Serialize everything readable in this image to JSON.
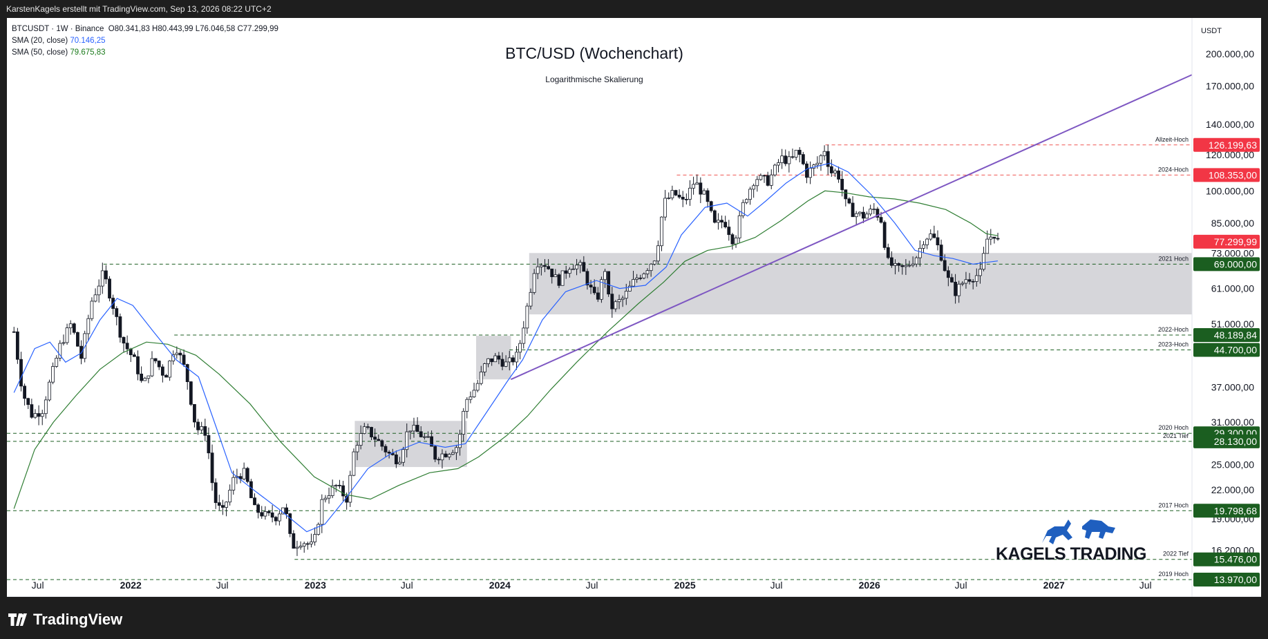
{
  "header": {
    "attribution": "KarstenKagels erstellt mit TradingView.com, Sep 13, 2026 08:22 UTC+2"
  },
  "legend": {
    "symbol": "BTCUSDT · 1W · Binance",
    "ohlc": "O80.341,83  H80.443,99  L76.046,58  C77.299,99",
    "sma20_label": "SMA (20, close)",
    "sma20_value": "70.146,25",
    "sma50_label": "SMA (50, close)",
    "sma50_value": "79.675,83"
  },
  "footer": {
    "brand": "TradingView"
  },
  "watermark": "KAGELS TRADING",
  "colors": {
    "up": "#26a69a",
    "down": "#ef5350",
    "candle": "#131722",
    "sma20": "#2962ff",
    "sma50": "#2e7d32",
    "trendline": "#7e57c2",
    "support": "#1b5e20",
    "resistance": "#ef5350",
    "zone": "#cfcfd3"
  },
  "chart_data": {
    "type": "candlestick",
    "title": "BTC/USD (Wochenchart)",
    "subtitle": "Logarithmische Skalierung",
    "y_scale": "log",
    "currency": "USDT",
    "ylim": [
      12800,
      240000
    ],
    "xlim": [
      "2021-05-01",
      "2027-10-01"
    ],
    "y_ticks": [
      "200.000,00",
      "170.000,00",
      "140.000,00",
      "120.000,00",
      "100.000,00",
      "85.000,00",
      "73.000,00",
      "61.000,00",
      "51.000,00",
      "37.000,00",
      "31.000,00",
      "25.000,00",
      "22.000,00",
      "19.000,00",
      "16.200,00"
    ],
    "y_tick_values": [
      200000,
      170000,
      140000,
      120000,
      100000,
      85000,
      73000,
      61000,
      51000,
      37000,
      31000,
      25000,
      22000,
      19000,
      16200
    ],
    "x_ticks": [
      {
        "label": "Jul",
        "date": "2021-07-01",
        "bold": false
      },
      {
        "label": "2022",
        "date": "2022-01-01",
        "bold": true
      },
      {
        "label": "Jul",
        "date": "2022-07-01",
        "bold": false
      },
      {
        "label": "2023",
        "date": "2023-01-01",
        "bold": true
      },
      {
        "label": "Jul",
        "date": "2023-07-01",
        "bold": false
      },
      {
        "label": "2024",
        "date": "2024-01-01",
        "bold": true
      },
      {
        "label": "Jul",
        "date": "2024-07-01",
        "bold": false
      },
      {
        "label": "2025",
        "date": "2025-01-01",
        "bold": true
      },
      {
        "label": "Jul",
        "date": "2025-07-01",
        "bold": false
      },
      {
        "label": "2026",
        "date": "2026-01-01",
        "bold": true
      },
      {
        "label": "Jul",
        "date": "2026-07-01",
        "bold": false
      },
      {
        "label": "2027",
        "date": "2027-01-01",
        "bold": true
      },
      {
        "label": "Jul",
        "date": "2027-07-01",
        "bold": false
      }
    ],
    "price_series": [
      [
        "2021-05-15",
        49000
      ],
      [
        "2021-06-01",
        36000
      ],
      [
        "2021-06-20",
        32000
      ],
      [
        "2021-07-10",
        33000
      ],
      [
        "2021-07-25",
        38000
      ],
      [
        "2021-08-15",
        46000
      ],
      [
        "2021-09-05",
        51000
      ],
      [
        "2021-09-25",
        43000
      ],
      [
        "2021-10-15",
        57000
      ],
      [
        "2021-11-08",
        66000
      ],
      [
        "2021-11-25",
        57000
      ],
      [
        "2021-12-15",
        47000
      ],
      [
        "2022-01-10",
        42000
      ],
      [
        "2022-01-25",
        37000
      ],
      [
        "2022-02-15",
        43000
      ],
      [
        "2022-03-10",
        39000
      ],
      [
        "2022-03-30",
        46000
      ],
      [
        "2022-04-20",
        40000
      ],
      [
        "2022-05-10",
        30000
      ],
      [
        "2022-05-30",
        29500
      ],
      [
        "2022-06-15",
        21000
      ],
      [
        "2022-07-01",
        19500
      ],
      [
        "2022-07-25",
        23500
      ],
      [
        "2022-08-15",
        24000
      ],
      [
        "2022-09-01",
        20000
      ],
      [
        "2022-09-25",
        19300
      ],
      [
        "2022-10-15",
        19200
      ],
      [
        "2022-11-01",
        20500
      ],
      [
        "2022-11-15",
        16500
      ],
      [
        "2022-12-05",
        17000
      ],
      [
        "2022-12-28",
        16500
      ],
      [
        "2023-01-15",
        21000
      ],
      [
        "2023-02-10",
        22500
      ],
      [
        "2023-03-05",
        21000
      ],
      [
        "2023-03-20",
        27500
      ],
      [
        "2023-04-10",
        30000
      ],
      [
        "2023-05-01",
        28500
      ],
      [
        "2023-05-25",
        26500
      ],
      [
        "2023-06-15",
        25500
      ],
      [
        "2023-07-05",
        30300
      ],
      [
        "2023-07-25",
        29300
      ],
      [
        "2023-08-15",
        28000
      ],
      [
        "2023-08-25",
        26000
      ],
      [
        "2023-09-15",
        26500
      ],
      [
        "2023-10-10",
        27500
      ],
      [
        "2023-10-25",
        34500
      ],
      [
        "2023-11-15",
        37000
      ],
      [
        "2023-12-05",
        42000
      ],
      [
        "2023-12-25",
        43000
      ],
      [
        "2024-01-15",
        41500
      ],
      [
        "2024-02-05",
        43500
      ],
      [
        "2024-02-26",
        57000
      ],
      [
        "2024-03-12",
        70000
      ],
      [
        "2024-04-01",
        69000
      ],
      [
        "2024-04-25",
        63000
      ],
      [
        "2024-05-20",
        69000
      ],
      [
        "2024-06-10",
        68000
      ],
      [
        "2024-06-28",
        61000
      ],
      [
        "2024-07-10",
        57000
      ],
      [
        "2024-07-28",
        68000
      ],
      [
        "2024-08-05",
        55000
      ],
      [
        "2024-09-01",
        58000
      ],
      [
        "2024-09-25",
        64000
      ],
      [
        "2024-10-15",
        67000
      ],
      [
        "2024-11-05",
        72000
      ],
      [
        "2024-11-20",
        94000
      ],
      [
        "2024-12-10",
        99000
      ],
      [
        "2024-12-30",
        94000
      ],
      [
        "2025-01-20",
        105000
      ],
      [
        "2025-02-10",
        97000
      ],
      [
        "2025-03-01",
        84000
      ],
      [
        "2025-03-20",
        86000
      ],
      [
        "2025-04-08",
        77000
      ],
      [
        "2025-04-28",
        95000
      ],
      [
        "2025-05-20",
        107000
      ],
      [
        "2025-06-15",
        105000
      ],
      [
        "2025-07-10",
        118000
      ],
      [
        "2025-07-30",
        116000
      ],
      [
        "2025-08-12",
        123000
      ],
      [
        "2025-08-30",
        109000
      ],
      [
        "2025-09-20",
        115000
      ],
      [
        "2025-10-05",
        124000
      ],
      [
        "2025-10-15",
        110000
      ],
      [
        "2025-10-30",
        110000
      ],
      [
        "2025-11-15",
        94000
      ],
      [
        "2025-11-28",
        90000
      ],
      [
        "2025-12-20",
        88000
      ],
      [
        "2026-01-10",
        91000
      ],
      [
        "2026-01-25",
        86000
      ],
      [
        "2026-02-05",
        70000
      ],
      [
        "2026-02-25",
        67000
      ],
      [
        "2026-03-15",
        68000
      ],
      [
        "2026-04-05",
        72000
      ],
      [
        "2026-04-20",
        79000
      ],
      [
        "2026-05-05",
        80000
      ],
      [
        "2026-05-20",
        74000
      ],
      [
        "2026-06-05",
        64000
      ],
      [
        "2026-06-20",
        60000
      ],
      [
        "2026-07-10",
        64000
      ],
      [
        "2026-07-30",
        65000
      ],
      [
        "2026-08-10",
        66000
      ],
      [
        "2026-08-20",
        78000
      ],
      [
        "2026-09-05",
        80341
      ],
      [
        "2026-09-12",
        77299.99
      ]
    ],
    "sma20_series": [
      [
        "2021-05-15",
        36000
      ],
      [
        "2021-06-25",
        45000
      ],
      [
        "2021-07-25",
        46500
      ],
      [
        "2021-08-25",
        42000
      ],
      [
        "2021-09-25",
        44000
      ],
      [
        "2021-11-01",
        52000
      ],
      [
        "2021-12-05",
        58000
      ],
      [
        "2022-01-05",
        56000
      ],
      [
        "2022-02-15",
        49000
      ],
      [
        "2022-04-01",
        42500
      ],
      [
        "2022-05-15",
        39000
      ],
      [
        "2022-06-20",
        30000
      ],
      [
        "2022-07-20",
        24000
      ],
      [
        "2022-09-01",
        22000
      ],
      [
        "2022-10-20",
        20000
      ],
      [
        "2022-12-15",
        17800
      ],
      [
        "2023-01-20",
        18500
      ],
      [
        "2023-03-01",
        21000
      ],
      [
        "2023-04-15",
        24500
      ],
      [
        "2023-06-01",
        26500
      ],
      [
        "2023-07-25",
        28000
      ],
      [
        "2023-09-15",
        27300
      ],
      [
        "2023-10-25",
        27800
      ],
      [
        "2023-12-01",
        32000
      ],
      [
        "2024-01-15",
        38000
      ],
      [
        "2024-02-15",
        42500
      ],
      [
        "2024-03-25",
        52000
      ],
      [
        "2024-05-10",
        60000
      ],
      [
        "2024-07-10",
        63500
      ],
      [
        "2024-08-25",
        61000
      ],
      [
        "2024-10-15",
        62000
      ],
      [
        "2024-11-25",
        68000
      ],
      [
        "2024-12-25",
        80000
      ],
      [
        "2025-02-10",
        92000
      ],
      [
        "2025-03-25",
        94000
      ],
      [
        "2025-05-05",
        88000
      ],
      [
        "2025-06-10",
        95000
      ],
      [
        "2025-07-20",
        104000
      ],
      [
        "2025-09-01",
        112000
      ],
      [
        "2025-10-15",
        115000
      ],
      [
        "2025-11-20",
        110000
      ],
      [
        "2026-01-05",
        98000
      ],
      [
        "2026-02-20",
        85000
      ],
      [
        "2026-04-01",
        74000
      ],
      [
        "2026-05-10",
        72000
      ],
      [
        "2026-06-15",
        71000
      ],
      [
        "2026-07-25",
        69000
      ],
      [
        "2026-08-15",
        69500
      ],
      [
        "2026-09-12",
        70146
      ]
    ],
    "sma50_series": [
      [
        "2021-05-15",
        20000
      ],
      [
        "2021-06-25",
        27000
      ],
      [
        "2021-08-01",
        31000
      ],
      [
        "2021-09-15",
        35500
      ],
      [
        "2021-11-01",
        40500
      ],
      [
        "2021-12-15",
        44000
      ],
      [
        "2022-02-01",
        46500
      ],
      [
        "2022-03-15",
        46000
      ],
      [
        "2022-05-10",
        43500
      ],
      [
        "2022-06-25",
        39500
      ],
      [
        "2022-08-25",
        34000
      ],
      [
        "2022-10-25",
        28000
      ],
      [
        "2022-12-30",
        23500
      ],
      [
        "2023-03-01",
        21500
      ],
      [
        "2023-04-20",
        21000
      ],
      [
        "2023-06-15",
        22500
      ],
      [
        "2023-08-15",
        24000
      ],
      [
        "2023-10-10",
        24500
      ],
      [
        "2023-11-20",
        26000
      ],
      [
        "2024-01-15",
        29000
      ],
      [
        "2024-02-25",
        32000
      ],
      [
        "2024-04-10",
        36500
      ],
      [
        "2024-06-01",
        42000
      ],
      [
        "2024-08-01",
        49000
      ],
      [
        "2024-10-01",
        56500
      ],
      [
        "2024-11-20",
        63000
      ],
      [
        "2025-01-01",
        70000
      ],
      [
        "2025-02-15",
        74000
      ],
      [
        "2025-04-01",
        75500
      ],
      [
        "2025-05-20",
        79000
      ],
      [
        "2025-07-10",
        86000
      ],
      [
        "2025-09-01",
        95000
      ],
      [
        "2025-10-05",
        100000
      ],
      [
        "2025-11-15",
        99000
      ],
      [
        "2026-01-01",
        97000
      ],
      [
        "2026-02-20",
        96000
      ],
      [
        "2026-04-10",
        94000
      ],
      [
        "2026-06-01",
        91000
      ],
      [
        "2026-07-20",
        85000
      ],
      [
        "2026-08-20",
        80500
      ],
      [
        "2026-09-12",
        79675
      ]
    ],
    "trendline": {
      "from": [
        "2024-01-23",
        38500
      ],
      "to": [
        "2027-10-01",
        180000
      ]
    },
    "zones": [
      {
        "from": "2023-03-20",
        "to": "2023-10-28",
        "low": 24700,
        "high": 31200
      },
      {
        "from": "2023-11-15",
        "to": "2024-01-23",
        "low": 38500,
        "high": 48000
      },
      {
        "from": "2024-02-28",
        "to": "2027-10-01",
        "low": 53500,
        "high": 73000
      }
    ],
    "levels": [
      {
        "label": "Allzeit-Hoch",
        "value": 126199.63,
        "tag": "126.199,63",
        "color": "red",
        "start": "2025-10-06"
      },
      {
        "label": "2024-Hoch",
        "value": 108353,
        "tag": "108.353,00",
        "color": "red",
        "start": "2024-12-16"
      },
      {
        "label": "2021 Hoch",
        "value": 69000,
        "tag": "69.000,00",
        "color": "green",
        "start": "2021-11-08"
      },
      {
        "label": "2022-Hoch",
        "value": 48189.84,
        "tag": "48.189,84",
        "color": "green",
        "start": "2022-03-28"
      },
      {
        "label": "2023-Hoch",
        "value": 44700,
        "tag": "44.700,00",
        "color": "green",
        "start": "2024-01-20"
      },
      {
        "label": "2020 Hoch",
        "value": 29300,
        "tag": "29.300,00",
        "color": "green",
        "start": "2021-05-01"
      },
      {
        "label": "2021 Tief",
        "value": 28130,
        "tag": "28.130,00",
        "color": "green",
        "start": "2021-05-01"
      },
      {
        "label": "2017 Hoch",
        "value": 19798.68,
        "tag": "19.798,68",
        "color": "green",
        "start": "2021-05-01"
      },
      {
        "label": "2022 Tief",
        "value": 15476,
        "tag": "15.476,00",
        "color": "green",
        "start": "2022-11-21"
      },
      {
        "label": "2019 Hoch",
        "value": 13970,
        "tag": "13.970,00",
        "color": "green",
        "start": "2021-05-01"
      }
    ],
    "last_price": {
      "value": 77299.99,
      "tag": "77.299,99"
    }
  }
}
